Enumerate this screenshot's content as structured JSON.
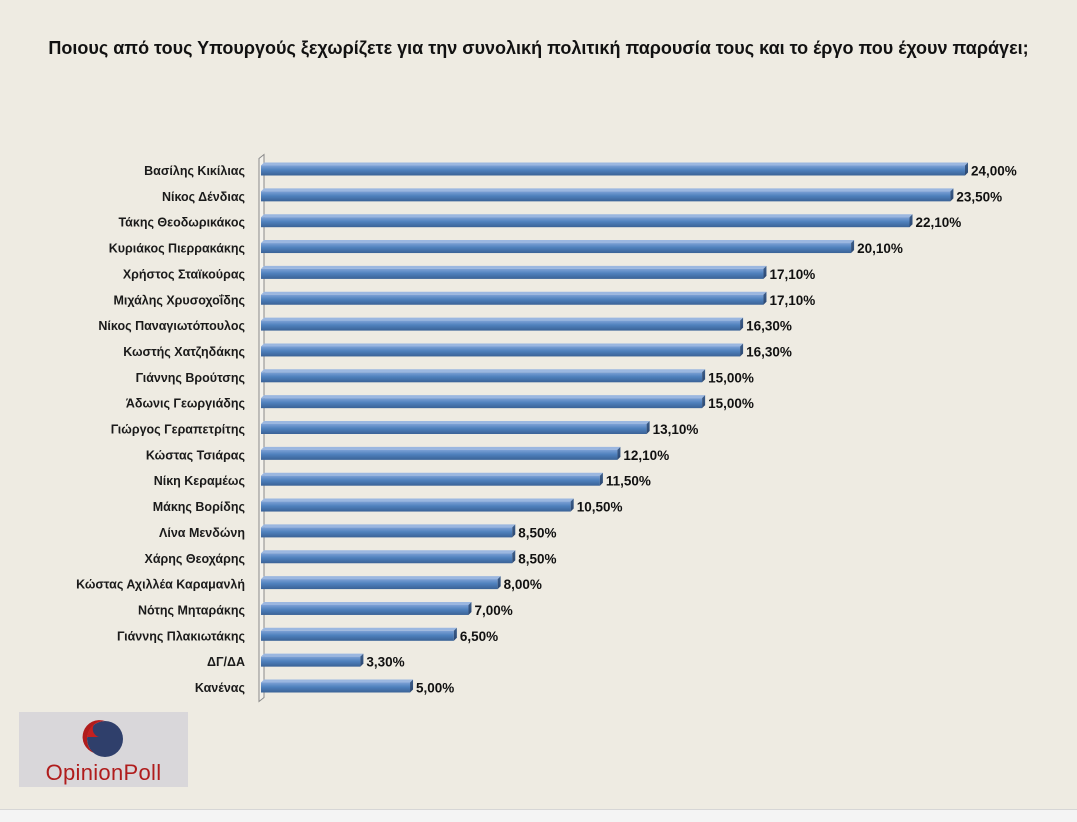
{
  "chart_data": {
    "type": "bar",
    "orientation": "horizontal",
    "title": "Ποιους από τους Υπουργούς  ξεχωρίζετε για την συνολική πολιτική παρουσία τους και το έργο που έχουν παράγει;",
    "categories": [
      "Βασίλης Κικίλιας",
      "Νίκος Δένδιας",
      "Τάκης Θεοδωρικάκος",
      "Κυριάκος Πιερρακάκης",
      "Χρήστος Σταϊκούρας",
      "Μιχάλης Χρυσοχοΐδης",
      "Νίκος Παναγιωτόπουλος",
      "Κωστής Χατζηδάκης",
      "Γιάννης Βρούτσης",
      "Άδωνις Γεωργιάδης",
      "Γιώργος Γεραπετρίτης",
      "Κώστας Τσιάρας",
      "Νίκη Κεραμέως",
      "Μάκης Βορίδης",
      "Λίνα Μενδώνη",
      "Χάρης Θεοχάρης",
      "Κώστας Αχιλλέα Καραμανλή",
      "Νότης Μηταράκης",
      "Γιάννης Πλακιωτάκης",
      "ΔΓ/ΔΑ",
      "Κανένας"
    ],
    "values": [
      24.0,
      23.5,
      22.1,
      20.1,
      17.1,
      17.1,
      16.3,
      16.3,
      15.0,
      15.0,
      13.1,
      12.1,
      11.5,
      10.5,
      8.5,
      8.5,
      8.0,
      7.0,
      6.5,
      3.3,
      5.0
    ],
    "value_labels": [
      "24,00%",
      "23,50%",
      "22,10%",
      "20,10%",
      "17,10%",
      "17,10%",
      "16,30%",
      "16,30%",
      "15,00%",
      "15,00%",
      "13,10%",
      "12,10%",
      "11,50%",
      "10,50%",
      "8,50%",
      "8,50%",
      "8,00%",
      "7,00%",
      "6,50%",
      "3,30%",
      "5,00%"
    ],
    "xlim": [
      0,
      24
    ],
    "grid": false,
    "legend": "none",
    "bar_color": "#4f81bd"
  },
  "logo": {
    "text": "OpinionPoll",
    "accent_color": "#b01c1c",
    "mark_color": "#2f3f6b"
  }
}
